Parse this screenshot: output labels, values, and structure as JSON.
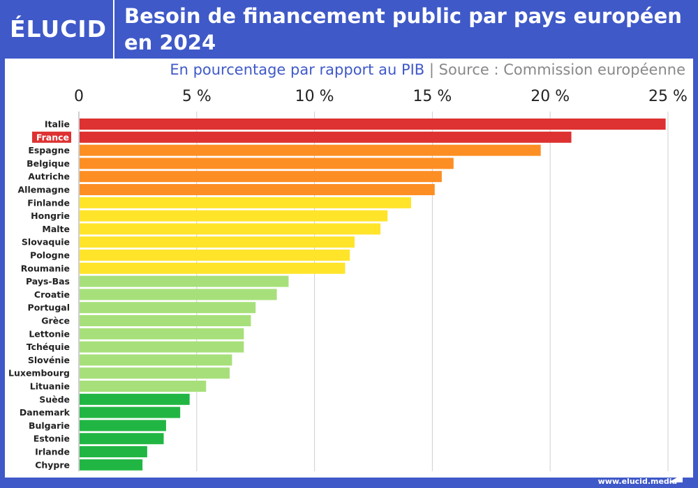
{
  "header": {
    "logo": "ÉLUCID",
    "title": "Besoin de financement public par pays européen en 2024"
  },
  "subtitle": "En pourcentage par rapport au PIB",
  "separator": "|",
  "source": "Source : Commission européenne",
  "footer": "www.elucid.media",
  "colors": {
    "background": "#3f59c8",
    "red": "#de3131",
    "orange": "#fd8e24",
    "yellow": "#ffe42a",
    "lightgreen": "#a7e07a",
    "green": "#21b643"
  },
  "chart_data": {
    "type": "bar",
    "orientation": "horizontal",
    "xlim": [
      0,
      25
    ],
    "grid": true,
    "highlight": "France",
    "ticks": [
      {
        "v": 0,
        "label": "0"
      },
      {
        "v": 5,
        "label": "5 %"
      },
      {
        "v": 10,
        "label": "10 %"
      },
      {
        "v": 15,
        "label": "15 %"
      },
      {
        "v": 20,
        "label": "20 %"
      },
      {
        "v": 25,
        "label": "25 %"
      }
    ],
    "categories": [
      "Italie",
      "France",
      "Espagne",
      "Belgique",
      "Autriche",
      "Allemagne",
      "Finlande",
      "Hongrie",
      "Malte",
      "Slovaquie",
      "Pologne",
      "Roumanie",
      "Pays-Bas",
      "Croatie",
      "Portugal",
      "Grèce",
      "Lettonie",
      "Tchéquie",
      "Slovénie",
      "Luxembourg",
      "Lituanie",
      "Suède",
      "Danemark",
      "Bulgarie",
      "Estonie",
      "Irlande",
      "Chypre"
    ],
    "values": [
      24.9,
      20.9,
      19.6,
      15.9,
      15.4,
      15.1,
      14.1,
      13.1,
      12.8,
      11.7,
      11.5,
      11.3,
      8.9,
      8.4,
      7.5,
      7.3,
      7.0,
      7.0,
      6.5,
      6.4,
      5.4,
      4.7,
      4.3,
      3.7,
      3.6,
      2.9,
      2.7
    ],
    "color_groups": [
      "red",
      "red",
      "orange",
      "orange",
      "orange",
      "orange",
      "yellow",
      "yellow",
      "yellow",
      "yellow",
      "yellow",
      "yellow",
      "lightgreen",
      "lightgreen",
      "lightgreen",
      "lightgreen",
      "lightgreen",
      "lightgreen",
      "lightgreen",
      "lightgreen",
      "lightgreen",
      "green",
      "green",
      "green",
      "green",
      "green",
      "green"
    ]
  }
}
